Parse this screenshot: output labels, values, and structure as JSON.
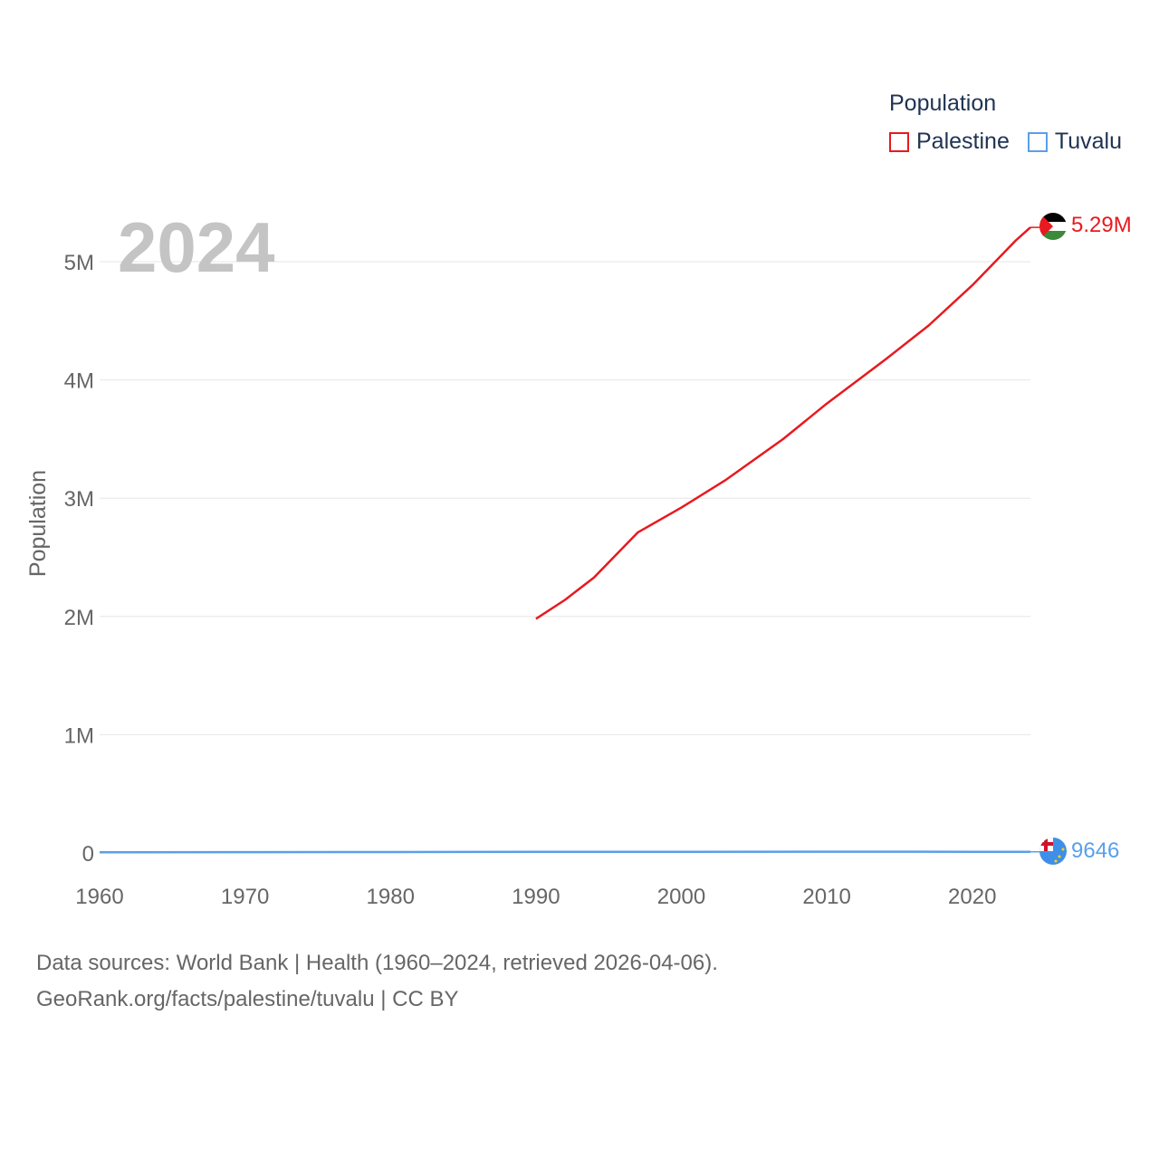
{
  "chart_data": {
    "type": "line",
    "title": "",
    "year_label": "2024",
    "xlabel": "",
    "ylabel": "Population",
    "xlim": [
      1960,
      2024
    ],
    "ylim": [
      0,
      5500000
    ],
    "x_ticks": [
      1960,
      1970,
      1980,
      1990,
      2000,
      2010,
      2020
    ],
    "y_ticks": [
      {
        "value": 0,
        "label": "0"
      },
      {
        "value": 1000000,
        "label": "1M"
      },
      {
        "value": 2000000,
        "label": "2M"
      },
      {
        "value": 3000000,
        "label": "3M"
      },
      {
        "value": 4000000,
        "label": "4M"
      },
      {
        "value": 5000000,
        "label": "5M"
      }
    ],
    "legend_title": "Population",
    "series": [
      {
        "name": "Palestine",
        "color": "#e8191f",
        "end_label": "5.29M",
        "x": [
          1990,
          1992,
          1994,
          1997,
          2000,
          2003,
          2007,
          2010,
          2014,
          2017,
          2020,
          2023,
          2024
        ],
        "y": [
          1980000,
          2140000,
          2330000,
          2710000,
          2920000,
          3150000,
          3500000,
          3800000,
          4170000,
          4460000,
          4800000,
          5180000,
          5290000
        ]
      },
      {
        "name": "Tuvalu",
        "color": "#5a9fe8",
        "end_label": "9646",
        "x": [
          1960,
          1970,
          1980,
          1990,
          2000,
          2010,
          2020,
          2024
        ],
        "y": [
          5600,
          6800,
          7700,
          9000,
          9400,
          10500,
          9900,
          9646
        ]
      }
    ]
  },
  "source": {
    "line1": "Data sources: World Bank | Health (1960–2024, retrieved 2026-04-06).",
    "line2": "GeoRank.org/facts/palestine/tuvalu | CC BY"
  }
}
